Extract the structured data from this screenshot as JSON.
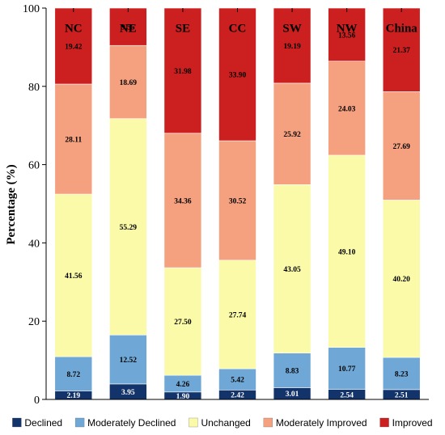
{
  "chart_data": {
    "type": "bar",
    "stacked": true,
    "categories": [
      "NC",
      "NE",
      "SE",
      "CC",
      "SW",
      "NW",
      "China"
    ],
    "series": [
      {
        "name": "Declined",
        "color": "#13336b",
        "values": [
          2.19,
          3.95,
          1.9,
          2.42,
          3.01,
          2.54,
          2.51
        ],
        "labels": [
          "2.19",
          "3.95",
          "1.90",
          "2.42",
          "3.01",
          "2.54",
          "2.51"
        ]
      },
      {
        "name": "Moderately Declined",
        "color": "#6fa8d6",
        "values": [
          8.72,
          12.52,
          4.26,
          5.42,
          8.83,
          10.77,
          8.23
        ],
        "labels": [
          "8.72",
          "12.52",
          "4.26",
          "5.42",
          "8.83",
          "10.77",
          "8.23"
        ]
      },
      {
        "name": "Unchanged",
        "color": "#fafaa8",
        "values": [
          41.56,
          55.29,
          27.5,
          27.74,
          43.05,
          49.1,
          40.2
        ],
        "labels": [
          "41.56",
          "55.29",
          "27.50",
          "27.74",
          "43.05",
          "49.10",
          "40.20"
        ]
      },
      {
        "name": "Moderately Improved",
        "color": "#f5a17f",
        "values": [
          28.11,
          18.69,
          34.36,
          30.52,
          25.92,
          24.03,
          27.69
        ],
        "labels": [
          "28.11",
          "18.69",
          "34.36",
          "30.52",
          "25.92",
          "24.03",
          "27.69"
        ]
      },
      {
        "name": "Improved",
        "color": "#cc1f1f",
        "values": [
          19.42,
          9.55,
          31.98,
          33.9,
          19.19,
          13.56,
          21.37
        ],
        "labels": [
          "19.42",
          "9.55",
          "31.98",
          "33.90",
          "19.19",
          "13.56",
          "21.37"
        ]
      }
    ],
    "ylabel": "Percentage (%)",
    "xlabel": "",
    "ylim": [
      0,
      100
    ],
    "yticks": [
      "0",
      "20",
      "40",
      "60",
      "80",
      "100"
    ],
    "grid": false,
    "legend_position": "bottom"
  }
}
